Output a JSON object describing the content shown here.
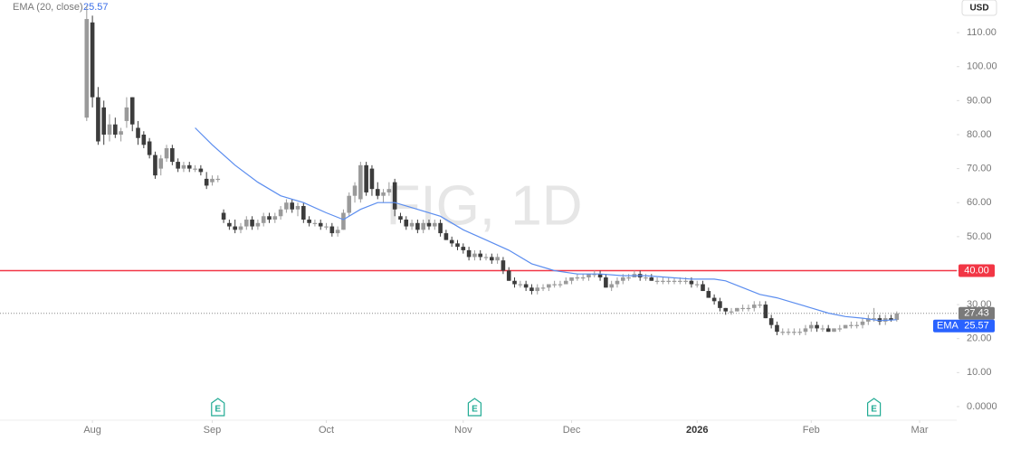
{
  "chart_data": {
    "type": "candlestick",
    "watermark": "FIG, 1D",
    "currency": "USD",
    "indicator": {
      "label": "EMA (20, close)",
      "short": "EMA",
      "color": "#5b8def",
      "x": [
        19,
        22,
        26,
        30,
        34,
        38,
        42,
        45,
        48,
        51,
        54,
        58,
        62,
        66,
        70,
        74,
        78,
        82,
        86,
        90,
        94,
        98,
        102,
        106,
        108,
        110,
        112,
        115,
        118,
        121,
        124,
        127,
        130,
        133,
        136,
        139,
        142
      ],
      "values": [
        82,
        77,
        71,
        66,
        62,
        60,
        57,
        55,
        58,
        60,
        60,
        58,
        56,
        52,
        49,
        46,
        42,
        40,
        39,
        39,
        38.5,
        38.5,
        38,
        37.5,
        37.5,
        37.5,
        37,
        35,
        33,
        32,
        30.5,
        29,
        27.5,
        26.5,
        26,
        25.3,
        25.57
      ],
      "value_label": "25.57"
    },
    "up_color": "#9a9a9a",
    "down_color": "#3c3c3c",
    "ohlc": [
      [
        85,
        118,
        84,
        114
      ],
      [
        113,
        115,
        88,
        91
      ],
      [
        91,
        94,
        77,
        78
      ],
      [
        88,
        90,
        77,
        80
      ],
      [
        80,
        86,
        78,
        83
      ],
      [
        83,
        85,
        79,
        80
      ],
      [
        80,
        82,
        78,
        81
      ],
      [
        84,
        91,
        82,
        88
      ],
      [
        91,
        91,
        81,
        83
      ],
      [
        82,
        84,
        77,
        79
      ],
      [
        80,
        81,
        76,
        77
      ],
      [
        78,
        79,
        73,
        74
      ],
      [
        74,
        75,
        67,
        68
      ],
      [
        70,
        74,
        68,
        73
      ],
      [
        73,
        77,
        72,
        76
      ],
      [
        76,
        77,
        71,
        72
      ],
      [
        72,
        73,
        69,
        70
      ],
      [
        70,
        72,
        69,
        71
      ],
      [
        71,
        72,
        69,
        70
      ],
      [
        70,
        71,
        69,
        70
      ],
      [
        70,
        71,
        68,
        69
      ],
      [
        67,
        69,
        64,
        65
      ],
      [
        66,
        68,
        65,
        67
      ],
      [
        67,
        68,
        66,
        67
      ],
      [
        57,
        58,
        54,
        55
      ],
      [
        54,
        55,
        52,
        53
      ],
      [
        53,
        55,
        51,
        52
      ],
      [
        52,
        54,
        51,
        53
      ],
      [
        53,
        56,
        52,
        55
      ],
      [
        55,
        56,
        52,
        53
      ],
      [
        53,
        55,
        52,
        54
      ],
      [
        54,
        57,
        53,
        56
      ],
      [
        56,
        57,
        54,
        55
      ],
      [
        55,
        57,
        54,
        56
      ],
      [
        56,
        59,
        55,
        58
      ],
      [
        58,
        61,
        57,
        60
      ],
      [
        60,
        61,
        57,
        58
      ],
      [
        58,
        60,
        56,
        59
      ],
      [
        59,
        60,
        54,
        55
      ],
      [
        55,
        56,
        53,
        54
      ],
      [
        54,
        55,
        53,
        54
      ],
      [
        54,
        55,
        52,
        53
      ],
      [
        53,
        54,
        52,
        53
      ],
      [
        53,
        54,
        50,
        51
      ],
      [
        51,
        53,
        50,
        52
      ],
      [
        52,
        58,
        52,
        57
      ],
      [
        57,
        63,
        56,
        62
      ],
      [
        62,
        66,
        60,
        65
      ],
      [
        61,
        72,
        60,
        71
      ],
      [
        71,
        72,
        62,
        63
      ],
      [
        70,
        71,
        62,
        64
      ],
      [
        64,
        66,
        61,
        62
      ],
      [
        62,
        64,
        60,
        63
      ],
      [
        63,
        66,
        62,
        64
      ],
      [
        66,
        67,
        56,
        58
      ],
      [
        56,
        57,
        54,
        55
      ],
      [
        55,
        56,
        52,
        53
      ],
      [
        53,
        55,
        52,
        54
      ],
      [
        54,
        55,
        51,
        52
      ],
      [
        52,
        55,
        51,
        54
      ],
      [
        54,
        55,
        52,
        53
      ],
      [
        53,
        55,
        52,
        54
      ],
      [
        54,
        55,
        50,
        51
      ],
      [
        51,
        52,
        49,
        49
      ],
      [
        49,
        50,
        47,
        48
      ],
      [
        48,
        49,
        46,
        47
      ],
      [
        47,
        48,
        45,
        46
      ],
      [
        46,
        47,
        43,
        44
      ],
      [
        44,
        46,
        43,
        45
      ],
      [
        45,
        46,
        43,
        44
      ],
      [
        44,
        45,
        43,
        44
      ],
      [
        44,
        45,
        42,
        43
      ],
      [
        43,
        45,
        42,
        44
      ],
      [
        43,
        44,
        39,
        40
      ],
      [
        40,
        41,
        37,
        37
      ],
      [
        37,
        38,
        35,
        36
      ],
      [
        36,
        37,
        35,
        36
      ],
      [
        36,
        37,
        34,
        35
      ],
      [
        35,
        36,
        33,
        34
      ],
      [
        34,
        36,
        33,
        35
      ],
      [
        35,
        36,
        34,
        35
      ],
      [
        35,
        36,
        34,
        36
      ],
      [
        36,
        37,
        35,
        36
      ],
      [
        36,
        37,
        35,
        36
      ],
      [
        36,
        38,
        36,
        37
      ],
      [
        37,
        38,
        36,
        38
      ],
      [
        38,
        39,
        37,
        38
      ],
      [
        38,
        39,
        37,
        38
      ],
      [
        38,
        39,
        37,
        39
      ],
      [
        39,
        40,
        38,
        39
      ],
      [
        39,
        40,
        37,
        38
      ],
      [
        38,
        39,
        35,
        35
      ],
      [
        35,
        37,
        34,
        36
      ],
      [
        36,
        38,
        35,
        37
      ],
      [
        37,
        39,
        36,
        38
      ],
      [
        38,
        39,
        37,
        38
      ],
      [
        38,
        40,
        38,
        39
      ],
      [
        39,
        40,
        37,
        38
      ],
      [
        38,
        39,
        37,
        38
      ],
      [
        38,
        39,
        37,
        37
      ],
      [
        37,
        38,
        36,
        37
      ],
      [
        37,
        38,
        36,
        37
      ],
      [
        37,
        38,
        36,
        37
      ],
      [
        37,
        38,
        36,
        37
      ],
      [
        37,
        38,
        36,
        37
      ],
      [
        37,
        38,
        36,
        37
      ],
      [
        37,
        38,
        35,
        36
      ],
      [
        36,
        37,
        35,
        36
      ],
      [
        36,
        37,
        34,
        34
      ],
      [
        34,
        35,
        32,
        32
      ],
      [
        32,
        33,
        30,
        31
      ],
      [
        31,
        32,
        28,
        29
      ],
      [
        29,
        29,
        27,
        28
      ],
      [
        28,
        29,
        27,
        28
      ],
      [
        28,
        29,
        28,
        29
      ],
      [
        29,
        30,
        28,
        29
      ],
      [
        29,
        30,
        28,
        29
      ],
      [
        29,
        31,
        28,
        30
      ],
      [
        30,
        31,
        29,
        30
      ],
      [
        30,
        31,
        26,
        26
      ],
      [
        26,
        27,
        23,
        24
      ],
      [
        24,
        25,
        21,
        22
      ],
      [
        22,
        23,
        21,
        22
      ],
      [
        22,
        23,
        21,
        22
      ],
      [
        22,
        23,
        21,
        22
      ],
      [
        22,
        23,
        21,
        22
      ],
      [
        22,
        24,
        21,
        23
      ],
      [
        23,
        25,
        22,
        24
      ],
      [
        24,
        25,
        22,
        23
      ],
      [
        23,
        24,
        22,
        23
      ],
      [
        23,
        24,
        22,
        22
      ],
      [
        22,
        23,
        22,
        23
      ],
      [
        23,
        24,
        22,
        23
      ],
      [
        23,
        24,
        23,
        24
      ],
      [
        24,
        25,
        23,
        24
      ],
      [
        24,
        25,
        23,
        24
      ],
      [
        24,
        26,
        23,
        25
      ],
      [
        25,
        27,
        24,
        26
      ],
      [
        26,
        29,
        25,
        26
      ],
      [
        26,
        27,
        24,
        25
      ],
      [
        25,
        27,
        24,
        26
      ],
      [
        26,
        27,
        25,
        25.5
      ],
      [
        25.5,
        28,
        25,
        27.43
      ]
    ],
    "last_price_label": "27.43",
    "price_line": {
      "value": 40,
      "label": "40.00",
      "color": "#f23645"
    },
    "earnings": [
      {
        "x": 23,
        "label": "E"
      },
      {
        "x": 68,
        "label": "E"
      },
      {
        "x": 138,
        "label": "E"
      }
    ],
    "xlim": [
      -15.2,
      152.5
    ],
    "ylim": [
      -4,
      119.6
    ],
    "xticks": [
      {
        "value": 1,
        "label": "Aug"
      },
      {
        "value": 22,
        "label": "Sep"
      },
      {
        "value": 42,
        "label": "Oct"
      },
      {
        "value": 66,
        "label": "Nov"
      },
      {
        "value": 85,
        "label": "Dec"
      },
      {
        "value": 107,
        "label": "2026"
      },
      {
        "value": 127,
        "label": "Feb"
      },
      {
        "value": 146,
        "label": "Mar"
      }
    ],
    "yticks": [
      {
        "value": 0,
        "label": "0.0000"
      },
      {
        "value": 10,
        "label": "10.00"
      },
      {
        "value": 20,
        "label": "20.00"
      },
      {
        "value": 30,
        "label": "30.00"
      },
      {
        "value": 40,
        "label": "40.00"
      },
      {
        "value": 50,
        "label": "50.00"
      },
      {
        "value": 60,
        "label": "60.00"
      },
      {
        "value": 70,
        "label": "70.00"
      },
      {
        "value": 80,
        "label": "80.00"
      },
      {
        "value": 90,
        "label": "90.00"
      },
      {
        "value": 100,
        "label": "100.00"
      },
      {
        "value": 110,
        "label": "110.00"
      }
    ]
  }
}
